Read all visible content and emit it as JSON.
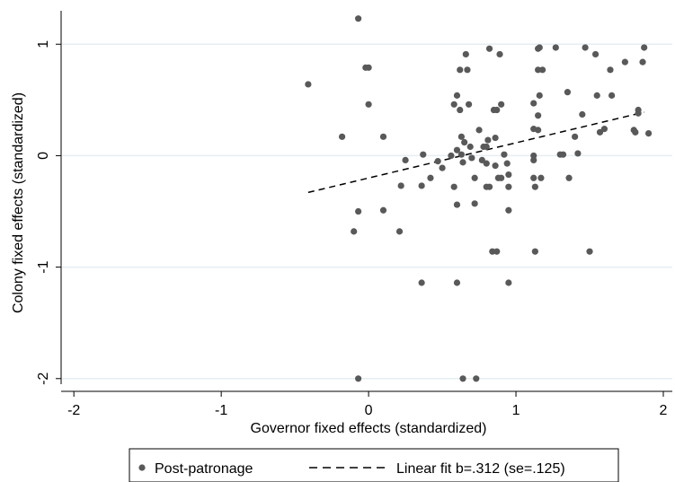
{
  "chart_data": {
    "type": "scatter",
    "title": "",
    "xlabel": "Governor fixed effects (standardized)",
    "ylabel": "Colony fixed effects (standardized)",
    "xlim": [
      -2.05,
      2.0
    ],
    "ylim": [
      -2.05,
      1.3
    ],
    "xticks": [
      -2,
      -1,
      0,
      1,
      2
    ],
    "yticks": [
      -2,
      -1,
      0,
      1
    ],
    "grid": "horizontal",
    "legend_position": "bottom",
    "colors": {
      "points": "#595959",
      "fit": "#000000",
      "grid": "#e6eef2"
    },
    "series": [
      {
        "name": "Post-patronage",
        "kind": "scatter",
        "points": [
          [
            -0.41,
            0.64
          ],
          [
            -0.07,
            1.23
          ],
          [
            -0.18,
            0.17
          ],
          [
            -0.1,
            -0.68
          ],
          [
            -0.07,
            -0.5
          ],
          [
            -0.07,
            -2.0
          ],
          [
            -0.02,
            0.79
          ],
          [
            0.0,
            0.79
          ],
          [
            0.0,
            0.46
          ],
          [
            0.1,
            0.17
          ],
          [
            0.1,
            -0.49
          ],
          [
            0.21,
            -0.68
          ],
          [
            0.22,
            -0.27
          ],
          [
            0.25,
            -0.04
          ],
          [
            0.36,
            -1.14
          ],
          [
            0.37,
            0.01
          ],
          [
            0.36,
            -0.27
          ],
          [
            0.42,
            -0.2
          ],
          [
            0.47,
            -0.05
          ],
          [
            0.5,
            -0.11
          ],
          [
            0.56,
            0.0
          ],
          [
            0.58,
            0.46
          ],
          [
            0.58,
            -0.28
          ],
          [
            0.6,
            0.54
          ],
          [
            0.6,
            0.05
          ],
          [
            0.6,
            -0.44
          ],
          [
            0.6,
            -1.14
          ],
          [
            0.62,
            0.77
          ],
          [
            0.62,
            0.41
          ],
          [
            0.63,
            0.17
          ],
          [
            0.63,
            0.01
          ],
          [
            0.64,
            -0.06
          ],
          [
            0.64,
            -2.0
          ],
          [
            0.65,
            0.12
          ],
          [
            0.66,
            0.91
          ],
          [
            0.67,
            0.77
          ],
          [
            0.68,
            0.46
          ],
          [
            0.69,
            0.08
          ],
          [
            0.7,
            -0.02
          ],
          [
            0.72,
            -0.2
          ],
          [
            0.72,
            -0.43
          ],
          [
            0.73,
            -2.0
          ],
          [
            0.75,
            0.23
          ],
          [
            0.77,
            -0.04
          ],
          [
            0.78,
            0.08
          ],
          [
            0.8,
            0.08
          ],
          [
            0.8,
            -0.07
          ],
          [
            0.8,
            -0.28
          ],
          [
            0.81,
            0.14
          ],
          [
            0.82,
            0.96
          ],
          [
            0.82,
            -0.28
          ],
          [
            0.84,
            -0.86
          ],
          [
            0.85,
            0.41
          ],
          [
            0.86,
            0.16
          ],
          [
            0.86,
            -0.09
          ],
          [
            0.87,
            0.41
          ],
          [
            0.87,
            -0.86
          ],
          [
            0.88,
            -0.2
          ],
          [
            0.89,
            0.91
          ],
          [
            0.9,
            0.46
          ],
          [
            0.9,
            -0.2
          ],
          [
            0.92,
            0.01
          ],
          [
            0.94,
            -0.07
          ],
          [
            0.95,
            -0.17
          ],
          [
            0.95,
            -0.28
          ],
          [
            0.95,
            -0.49
          ],
          [
            0.95,
            -1.14
          ],
          [
            1.12,
            0.47
          ],
          [
            1.12,
            0.24
          ],
          [
            1.12,
            0.0
          ],
          [
            1.12,
            -0.04
          ],
          [
            1.12,
            -0.2
          ],
          [
            1.13,
            -0.28
          ],
          [
            1.13,
            -0.86
          ],
          [
            1.15,
            0.96
          ],
          [
            1.15,
            0.77
          ],
          [
            1.15,
            0.36
          ],
          [
            1.15,
            0.23
          ],
          [
            1.16,
            0.97
          ],
          [
            1.16,
            0.54
          ],
          [
            1.17,
            -0.2
          ],
          [
            1.18,
            0.77
          ],
          [
            1.27,
            0.97
          ],
          [
            1.3,
            0.01
          ],
          [
            1.32,
            0.01
          ],
          [
            1.35,
            0.57
          ],
          [
            1.36,
            -0.2
          ],
          [
            1.4,
            0.17
          ],
          [
            1.42,
            0.02
          ],
          [
            1.45,
            0.37
          ],
          [
            1.47,
            0.97
          ],
          [
            1.5,
            -0.86
          ],
          [
            1.54,
            0.91
          ],
          [
            1.55,
            0.54
          ],
          [
            1.57,
            0.21
          ],
          [
            1.6,
            0.24
          ],
          [
            1.64,
            0.77
          ],
          [
            1.65,
            0.54
          ],
          [
            1.74,
            0.84
          ],
          [
            1.8,
            0.23
          ],
          [
            1.81,
            0.21
          ],
          [
            1.83,
            0.41
          ],
          [
            1.83,
            0.38
          ],
          [
            1.86,
            0.84
          ],
          [
            1.87,
            0.97
          ],
          [
            1.9,
            0.2
          ]
        ]
      },
      {
        "name": "Linear fit b=.312 (se=.125)",
        "kind": "line",
        "dash": "dashed",
        "x": [
          -0.41,
          1.87
        ],
        "y": [
          -0.33,
          0.39
        ]
      }
    ]
  }
}
